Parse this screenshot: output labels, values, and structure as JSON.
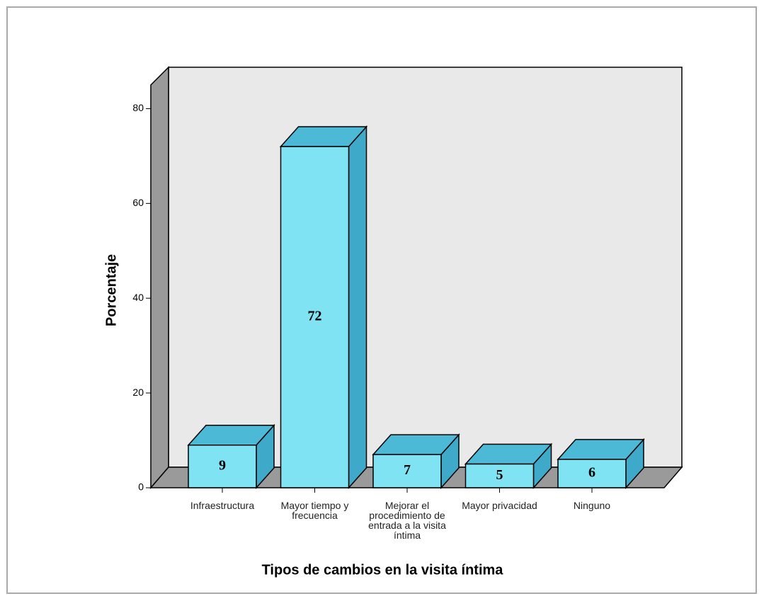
{
  "chart_data": {
    "type": "bar3d",
    "x_label": "Tipos de cambios en la visita íntima",
    "y_label": "Porcentaje",
    "categories": [
      "Infraestructura",
      "Mayor tiempo y frecuencia",
      "Mejorar el procedimiento de entrada a la visita íntima",
      "Mayor privacidad",
      "Ninguno"
    ],
    "values": [
      9,
      72,
      7,
      5,
      6
    ],
    "color": "#7fe3f3",
    "ylim": [
      0,
      85
    ],
    "yticks": [
      0,
      20,
      40,
      60,
      80
    ]
  }
}
